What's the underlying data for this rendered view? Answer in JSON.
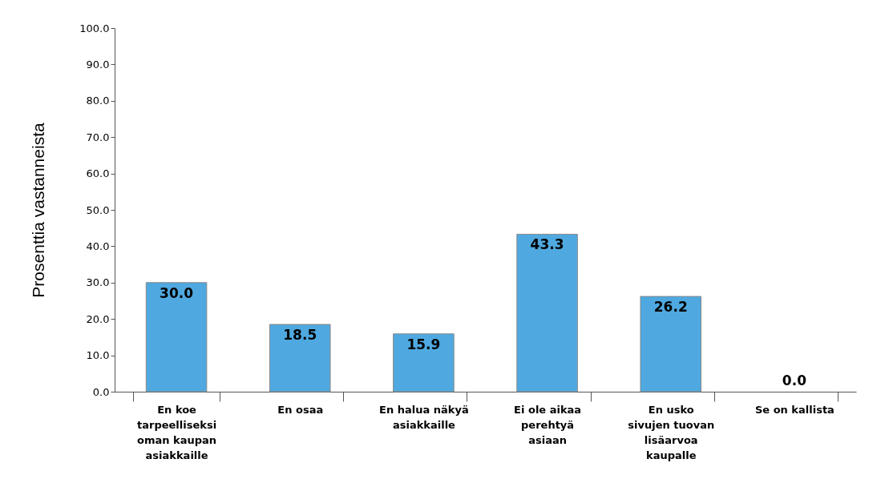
{
  "chart_data": {
    "type": "bar",
    "ylabel": "Prosenttia vastanneista",
    "categories": [
      "En koe tarpeelliseksi oman kaupan asiakkaille",
      "En osaa",
      "En halua näkyä asiakkaille",
      "Ei ole aikaa perehtyä asiaan",
      "En usko sivujen tuovan lisäarvoa kaupalle",
      "Se on kallista"
    ],
    "values": [
      30.0,
      18.5,
      15.9,
      43.3,
      26.2,
      0.0
    ],
    "color": "#4fa9e0",
    "value_labels": [
      "30.0",
      "18.5",
      "15.9",
      "43.3",
      "26.2",
      "0.0"
    ],
    "ylim": [
      0,
      100
    ],
    "yticks": [
      {
        "value": 0,
        "label": "0.0"
      },
      {
        "value": 10,
        "label": "10.0"
      },
      {
        "value": 20,
        "label": "20.0"
      },
      {
        "value": 30,
        "label": "30.0"
      },
      {
        "value": 40,
        "label": "40.0"
      },
      {
        "value": 50,
        "label": "50.0"
      },
      {
        "value": 60,
        "label": "60.0"
      },
      {
        "value": 70,
        "label": "70.0"
      },
      {
        "value": 80,
        "label": "80.0"
      },
      {
        "value": 90,
        "label": "90.0"
      },
      {
        "value": 100,
        "label": "100.0"
      }
    ],
    "grid": false
  }
}
